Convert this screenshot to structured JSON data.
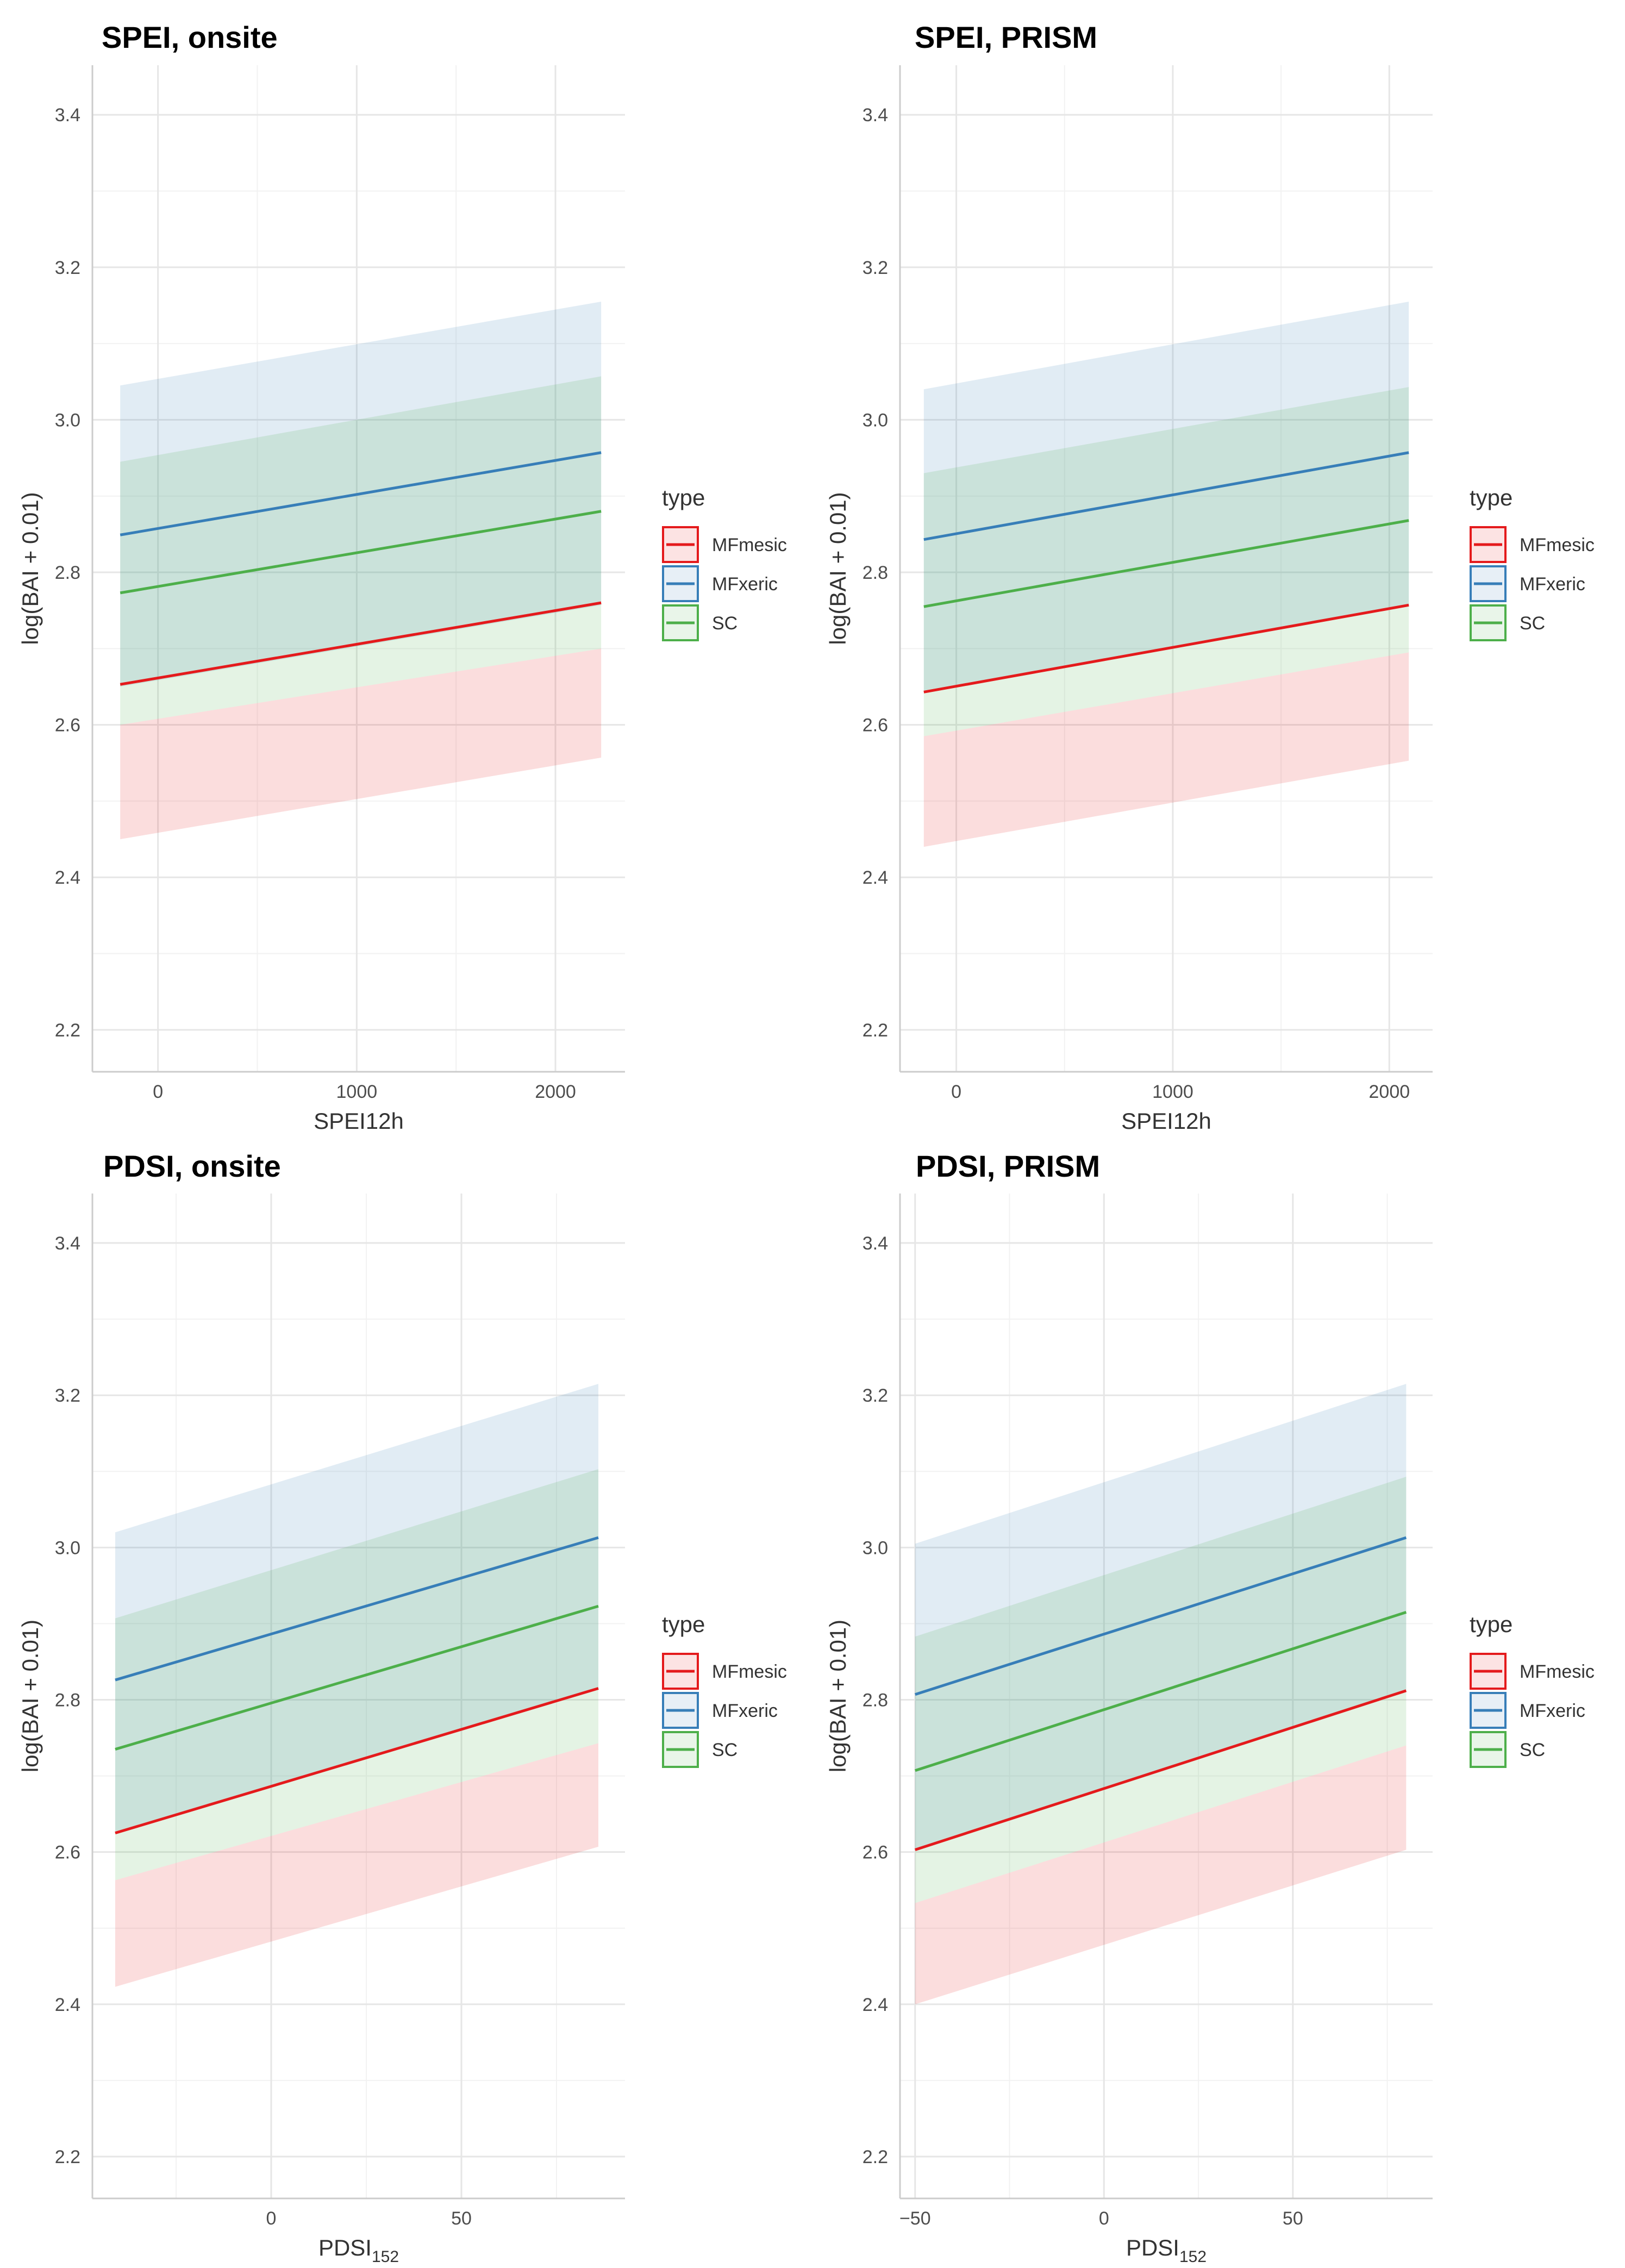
{
  "legend": {
    "title": "type",
    "entries": [
      {
        "label": "MFmesic",
        "color": "#e41a1c"
      },
      {
        "label": "MFxeric",
        "color": "#377eb8"
      },
      {
        "label": "SC",
        "color": "#4daf4a"
      }
    ]
  },
  "chart_data": [
    {
      "type": "line",
      "title": "SPEI, onsite",
      "xlabel": "SPEI12h",
      "ylabel": "log(BAI + 0.01)",
      "xlim": [
        -330,
        2350
      ],
      "ylim": [
        2.145,
        3.465
      ],
      "xticks": [
        0,
        1000,
        2000
      ],
      "xtick_labels": [
        "0",
        "1000",
        "2000"
      ],
      "yticks": [
        2.2,
        2.4,
        2.6,
        2.8,
        3.0,
        3.2,
        3.4
      ],
      "ytick_labels": [
        "2.2",
        "2.4",
        "2.6",
        "2.8",
        "3.0",
        "3.2",
        "3.4"
      ],
      "grid": true,
      "legend_position": "right",
      "x": [
        -190,
        2230
      ],
      "series": [
        {
          "name": "MFmesic",
          "fit": [
            2.653,
            2.76
          ],
          "lower": [
            2.45,
            2.557
          ],
          "upper": [
            2.6,
            2.7
          ]
        },
        {
          "name": "MFxeric",
          "fit": [
            2.849,
            2.957
          ],
          "lower": [
            2.65,
            2.757
          ],
          "upper": [
            3.045,
            3.155
          ]
        },
        {
          "name": "SC",
          "fit": [
            2.773,
            2.88
          ],
          "lower": [
            2.6,
            2.7
          ],
          "upper": [
            2.945,
            3.057
          ]
        }
      ]
    },
    {
      "type": "line",
      "title": "SPEI, PRISM",
      "xlabel": "SPEI12h",
      "ylabel": "log(BAI + 0.01)",
      "xlim": [
        -260,
        2200
      ],
      "ylim": [
        2.145,
        3.465
      ],
      "xticks": [
        0,
        1000,
        2000
      ],
      "xtick_labels": [
        "0",
        "1000",
        "2000"
      ],
      "yticks": [
        2.2,
        2.4,
        2.6,
        2.8,
        3.0,
        3.2,
        3.4
      ],
      "ytick_labels": [
        "2.2",
        "2.4",
        "2.6",
        "2.8",
        "3.0",
        "3.2",
        "3.4"
      ],
      "grid": true,
      "legend_position": "right",
      "x": [
        -150,
        2090
      ],
      "series": [
        {
          "name": "MFmesic",
          "fit": [
            2.643,
            2.757
          ],
          "lower": [
            2.44,
            2.553
          ],
          "upper": [
            2.585,
            2.695
          ]
        },
        {
          "name": "MFxeric",
          "fit": [
            2.843,
            2.957
          ],
          "lower": [
            2.645,
            2.757
          ],
          "upper": [
            3.04,
            3.155
          ]
        },
        {
          "name": "SC",
          "fit": [
            2.755,
            2.868
          ],
          "lower": [
            2.585,
            2.695
          ],
          "upper": [
            2.93,
            3.043
          ]
        }
      ]
    },
    {
      "type": "line",
      "title": "PDSI, onsite",
      "xlabel": "PDSI152",
      "ylabel": "log(BAI + 0.01)",
      "xlim": [
        -47,
        93
      ],
      "ylim": [
        2.145,
        3.465
      ],
      "xticks": [
        0,
        50
      ],
      "xtick_labels": [
        "0",
        "50"
      ],
      "yticks": [
        2.2,
        2.4,
        2.6,
        2.8,
        3.0,
        3.2,
        3.4
      ],
      "ytick_labels": [
        "2.2",
        "2.4",
        "2.6",
        "2.8",
        "3.0",
        "3.2",
        "3.4"
      ],
      "grid": true,
      "legend_position": "right",
      "x": [
        -41,
        86
      ],
      "series": [
        {
          "name": "MFmesic",
          "fit": [
            2.625,
            2.815
          ],
          "lower": [
            2.423,
            2.607
          ],
          "upper": [
            2.563,
            2.743
          ]
        },
        {
          "name": "MFxeric",
          "fit": [
            2.826,
            3.013
          ],
          "lower": [
            2.625,
            2.815
          ],
          "upper": [
            3.02,
            3.215
          ]
        },
        {
          "name": "SC",
          "fit": [
            2.735,
            2.923
          ],
          "lower": [
            2.563,
            2.743
          ],
          "upper": [
            2.907,
            3.103
          ]
        }
      ]
    },
    {
      "type": "line",
      "title": "PDSI, PRISM",
      "xlabel": "PDSI152",
      "ylabel": "log(BAI + 0.01)",
      "xlim": [
        -54,
        87
      ],
      "ylim": [
        2.145,
        3.465
      ],
      "xticks": [
        -50,
        0,
        50
      ],
      "xtick_labels": [
        "−50",
        "0",
        "50"
      ],
      "yticks": [
        2.2,
        2.4,
        2.6,
        2.8,
        3.0,
        3.2,
        3.4
      ],
      "ytick_labels": [
        "2.2",
        "2.4",
        "2.6",
        "2.8",
        "3.0",
        "3.2",
        "3.4"
      ],
      "grid": true,
      "legend_position": "right",
      "x": [
        -50,
        80
      ],
      "series": [
        {
          "name": "MFmesic",
          "fit": [
            2.603,
            2.812
          ],
          "lower": [
            2.4,
            2.603
          ],
          "upper": [
            2.533,
            2.74
          ]
        },
        {
          "name": "MFxeric",
          "fit": [
            2.807,
            3.013
          ],
          "lower": [
            2.603,
            2.812
          ],
          "upper": [
            3.005,
            3.215
          ]
        },
        {
          "name": "SC",
          "fit": [
            2.707,
            2.915
          ],
          "lower": [
            2.533,
            2.74
          ],
          "upper": [
            2.883,
            3.093
          ]
        }
      ]
    }
  ]
}
